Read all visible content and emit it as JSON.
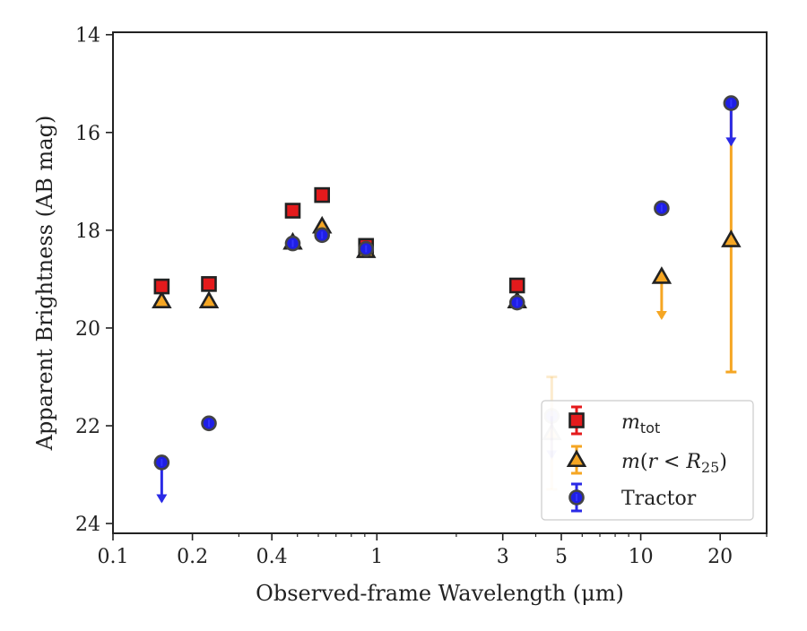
{
  "chart_data": {
    "type": "scatter",
    "xlabel": "Observed-frame Wavelength (μm)",
    "ylabel": "Apparent Brightness (AB mag)",
    "x_scale": "log",
    "xlim": [
      0.1,
      30
    ],
    "ylim": [
      24.2,
      13.95
    ],
    "y_inverted": true,
    "x_ticks": [
      {
        "value": 0.1,
        "label": "0.1"
      },
      {
        "value": 0.2,
        "label": "0.2"
      },
      {
        "value": 0.4,
        "label": "0.4"
      },
      {
        "value": 1,
        "label": "1"
      },
      {
        "value": 3,
        "label": "3"
      },
      {
        "value": 5,
        "label": "5"
      },
      {
        "value": 10,
        "label": "10"
      },
      {
        "value": 20,
        "label": "20"
      }
    ],
    "y_ticks": [
      {
        "value": 14,
        "label": "14"
      },
      {
        "value": 16,
        "label": "16"
      },
      {
        "value": 18,
        "label": "18"
      },
      {
        "value": 20,
        "label": "20"
      },
      {
        "value": 22,
        "label": "22"
      },
      {
        "value": 24,
        "label": "24"
      }
    ],
    "grid": false,
    "legend_position": "lower-right",
    "series": [
      {
        "legend_label": "m_tot",
        "marker": "square",
        "color": "#e41a1c",
        "points": [
          {
            "x": 0.153,
            "y": 19.15
          },
          {
            "x": 0.231,
            "y": 19.1
          },
          {
            "x": 0.48,
            "y": 17.6
          },
          {
            "x": 0.62,
            "y": 17.28
          },
          {
            "x": 0.91,
            "y": 18.32
          },
          {
            "x": 3.4,
            "y": 19.13
          }
        ]
      },
      {
        "legend_label": "m(r<R25)",
        "marker": "triangle",
        "color": "#f5a623",
        "points": [
          {
            "x": 0.153,
            "y": 19.45
          },
          {
            "x": 0.231,
            "y": 19.45
          },
          {
            "x": 0.48,
            "y": 18.25
          },
          {
            "x": 0.62,
            "y": 17.92
          },
          {
            "x": 0.91,
            "y": 18.42
          },
          {
            "x": 3.4,
            "y": 19.45
          },
          {
            "x": 4.6,
            "y": 22.15,
            "yerr": [
              1.15,
              1.15
            ],
            "faded": true
          },
          {
            "x": 12.0,
            "y": 18.95,
            "upper_limit": true,
            "limit_to": 19.8
          },
          {
            "x": 22.0,
            "y": 18.2,
            "yerr": [
              2.7,
              2.7
            ]
          }
        ]
      },
      {
        "legend_label": "Tractor",
        "marker": "circle",
        "color": "#1f1fe5",
        "points": [
          {
            "x": 0.153,
            "y": 22.75,
            "upper_limit": true,
            "limit_to": 23.55
          },
          {
            "x": 0.231,
            "y": 21.95
          },
          {
            "x": 0.48,
            "y": 18.27
          },
          {
            "x": 0.62,
            "y": 18.1
          },
          {
            "x": 0.91,
            "y": 18.38
          },
          {
            "x": 3.4,
            "y": 19.48
          },
          {
            "x": 4.6,
            "y": 21.8,
            "upper_limit": true,
            "limit_to": 22.65,
            "faded": true
          },
          {
            "x": 12.0,
            "y": 17.55
          },
          {
            "x": 22.0,
            "y": 15.4,
            "upper_limit": true,
            "limit_to": 16.25
          }
        ]
      }
    ]
  }
}
